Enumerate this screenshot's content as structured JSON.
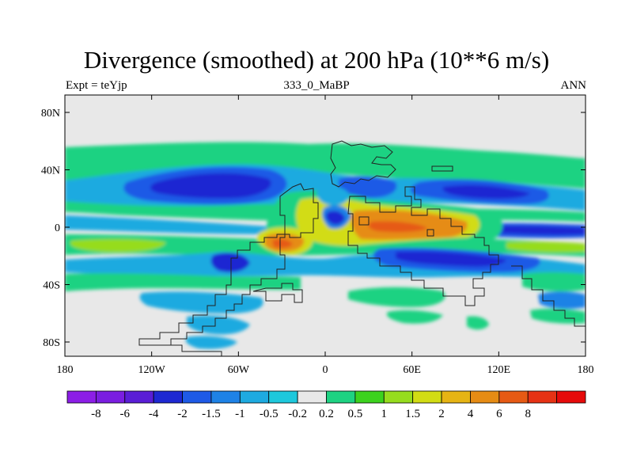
{
  "title": "Divergence (smoothed) at 200 hPa (10**6 m/s)",
  "subtitle_left": "Expt = teYjp",
  "subtitle_center": "333_0_MaBP",
  "subtitle_right": "ANN",
  "y_ticks": [
    {
      "label": "80N",
      "lat": 80
    },
    {
      "label": "40N",
      "lat": 40
    },
    {
      "label": "0",
      "lat": 0
    },
    {
      "label": "40S",
      "lat": -40
    },
    {
      "label": "80S",
      "lat": -80
    }
  ],
  "x_ticks": [
    {
      "label": "180",
      "lon": -180
    },
    {
      "label": "120W",
      "lon": -120
    },
    {
      "label": "60W",
      "lon": -60
    },
    {
      "label": "0",
      "lon": 0
    },
    {
      "label": "60E",
      "lon": 60
    },
    {
      "label": "120E",
      "lon": 120
    },
    {
      "label": "180",
      "lon": 180
    }
  ],
  "colorbar": {
    "colors": [
      "#8c1ee6",
      "#7a1ee0",
      "#5a1ed6",
      "#1e28d2",
      "#1e5ae6",
      "#1e82e6",
      "#1eaae0",
      "#1ec8dc",
      "#e8e8e8",
      "#1ed282",
      "#3cd21e",
      "#96dc1e",
      "#d2dc14",
      "#e6b414",
      "#e68c14",
      "#e65a14",
      "#e63214",
      "#e60a0a"
    ],
    "labels": [
      "-8",
      "-6",
      "-4",
      "-2",
      "-1.5",
      "-1",
      "-0.5",
      "-0.2",
      "0.2",
      "0.5",
      "1",
      "1.5",
      "2",
      "4",
      "6",
      "8"
    ]
  },
  "color_keys": {
    "background": "#e8e8e8",
    "green": "#1ed282",
    "cyan": "#1ec8dc",
    "lightblue": "#1eaae0",
    "blue": "#1e82e6",
    "midblue": "#1e5ae6",
    "darkblue": "#1e28d2",
    "lime": "#3cd21e",
    "yellowgreen": "#96dc1e",
    "yellow": "#d2dc14",
    "orange": "#e68c14",
    "darkorange": "#e65a14",
    "red": "#e63214"
  }
}
